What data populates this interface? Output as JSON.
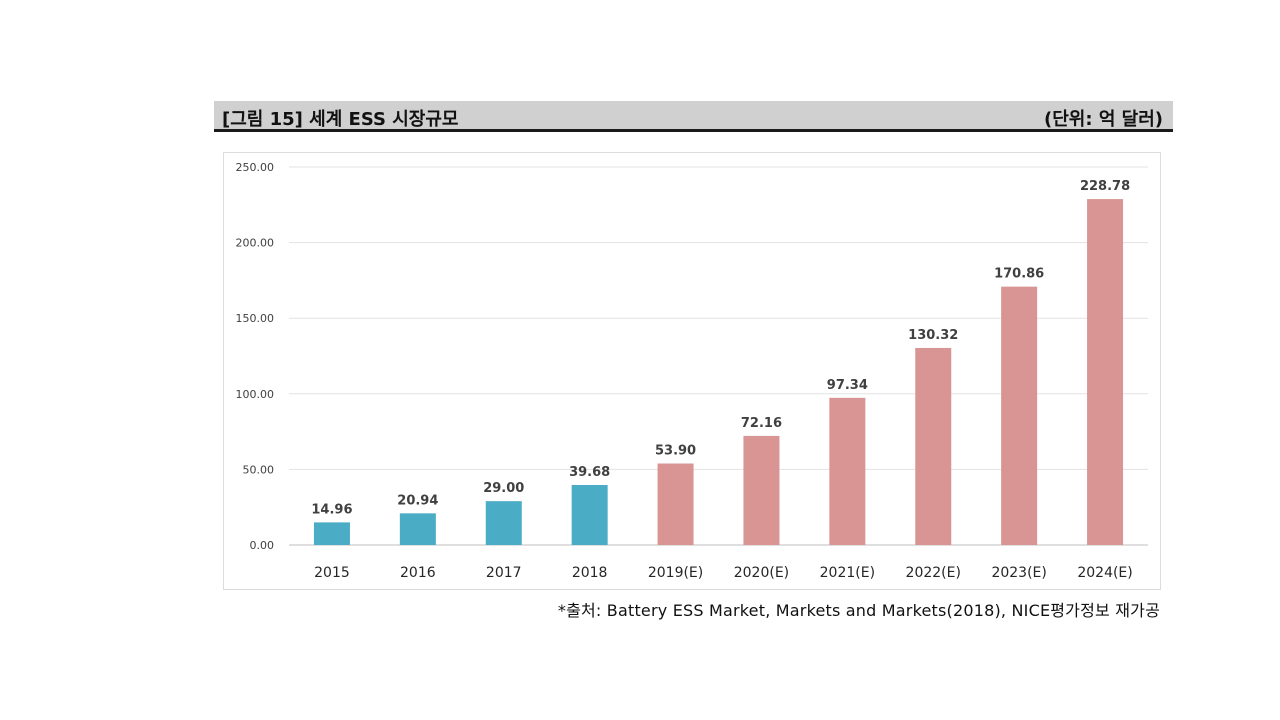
{
  "figure": {
    "title": "[그림 15] 세계 ESS 시장규모",
    "unit": "(단위: 억 달러)",
    "source": "*출처: Battery ESS Market, Markets and Markets(2018), NICE평가정보 재가공"
  },
  "chart_data": {
    "type": "bar",
    "categories": [
      "2015",
      "2016",
      "2017",
      "2018",
      "2019(E)",
      "2020(E)",
      "2021(E)",
      "2022(E)",
      "2023(E)",
      "2024(E)"
    ],
    "values": [
      14.96,
      20.94,
      29.0,
      39.68,
      53.9,
      72.16,
      97.34,
      130.32,
      170.86,
      228.78
    ],
    "value_labels": [
      "14.96",
      "20.94",
      "29.00",
      "39.68",
      "53.90",
      "72.16",
      "97.34",
      "130.32",
      "170.86",
      "228.78"
    ],
    "bar_colors": [
      "#4bacc6",
      "#4bacc6",
      "#4bacc6",
      "#4bacc6",
      "#d99594",
      "#d99594",
      "#d99594",
      "#d99594",
      "#d99594",
      "#d99594"
    ],
    "yticks": [
      0,
      50,
      100,
      150,
      200,
      250
    ],
    "ytick_labels": [
      "0.00",
      "50.00",
      "100.00",
      "150.00",
      "200.00",
      "250.00"
    ],
    "ylim": [
      0,
      250
    ],
    "grid": true,
    "legend": "none"
  }
}
